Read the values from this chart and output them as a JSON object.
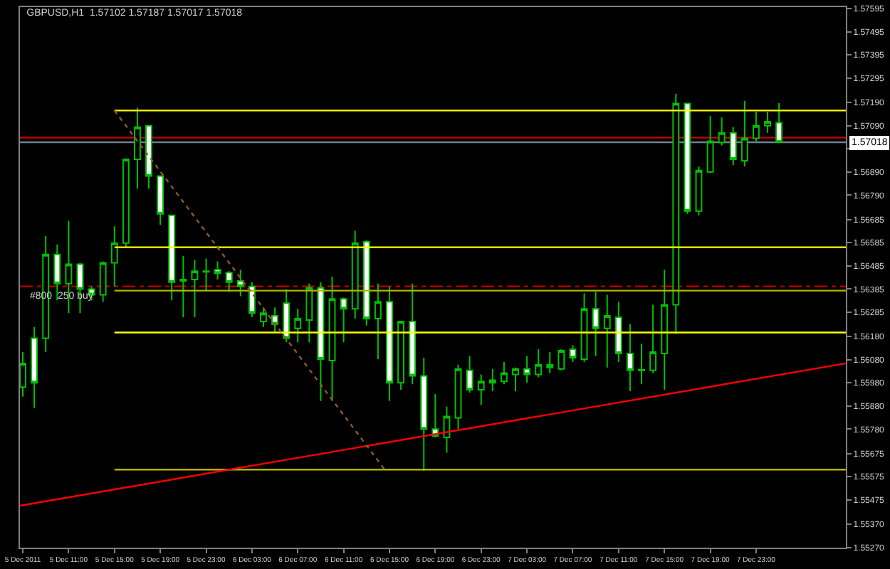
{
  "chart_data": {
    "type": "candlestick",
    "title": "GBPUSD,H1  1.57102 1.57187 1.57017 1.57018",
    "color": "#00c000",
    "x": [
      "2011-12-05T07:00",
      "2011-12-05T08:00",
      "2011-12-05T09:00",
      "2011-12-05T10:00",
      "2011-12-05T11:00",
      "2011-12-05T12:00",
      "2011-12-05T13:00",
      "2011-12-05T14:00",
      "2011-12-05T15:00",
      "2011-12-05T16:00",
      "2011-12-05T17:00",
      "2011-12-05T18:00",
      "2011-12-05T19:00",
      "2011-12-05T20:00",
      "2011-12-05T21:00",
      "2011-12-05T22:00",
      "2011-12-05T23:00",
      "2011-12-06T00:00",
      "2011-12-06T01:00",
      "2011-12-06T02:00",
      "2011-12-06T03:00",
      "2011-12-06T04:00",
      "2011-12-06T05:00",
      "2011-12-06T06:00",
      "2011-12-06T07:00",
      "2011-12-06T08:00",
      "2011-12-06T09:00",
      "2011-12-06T10:00",
      "2011-12-06T11:00",
      "2011-12-06T12:00",
      "2011-12-06T13:00",
      "2011-12-06T14:00",
      "2011-12-06T15:00",
      "2011-12-06T16:00",
      "2011-12-06T17:00",
      "2011-12-06T18:00",
      "2011-12-06T19:00",
      "2011-12-06T20:00",
      "2011-12-06T21:00",
      "2011-12-06T22:00",
      "2011-12-06T23:00",
      "2011-12-07T00:00",
      "2011-12-07T01:00",
      "2011-12-07T02:00",
      "2011-12-07T03:00",
      "2011-12-07T04:00",
      "2011-12-07T05:00",
      "2011-12-07T06:00",
      "2011-12-07T07:00",
      "2011-12-07T08:00",
      "2011-12-07T09:00",
      "2011-12-07T10:00",
      "2011-12-07T11:00",
      "2011-12-07T12:00",
      "2011-12-07T13:00",
      "2011-12-07T14:00",
      "2011-12-07T15:00",
      "2011-12-07T16:00",
      "2011-12-07T17:00",
      "2011-12-07T18:00",
      "2011-12-07T19:00",
      "2011-12-07T20:00",
      "2011-12-07T21:00",
      "2011-12-07T22:00",
      "2011-12-07T23:00",
      "2011-12-08T00:00",
      "2011-12-08T01:00"
    ],
    "ohlc": [
      [
        1.55962,
        1.56113,
        1.5592,
        1.56064
      ],
      [
        1.56173,
        1.56221,
        1.55872,
        1.5598
      ],
      [
        1.56173,
        1.56613,
        1.56113,
        1.56534
      ],
      [
        1.56534,
        1.56577,
        1.56336,
        1.56408
      ],
      [
        1.56408,
        1.56679,
        1.56281,
        1.56492
      ],
      [
        1.56492,
        1.56498,
        1.56281,
        1.56384
      ],
      [
        1.56384,
        1.56396,
        1.56336,
        1.5636
      ],
      [
        1.5636,
        1.56504,
        1.5633,
        1.56498
      ],
      [
        1.56498,
        1.56655,
        1.56396,
        1.56583
      ],
      [
        1.56583,
        1.56944,
        1.56565,
        1.56944
      ],
      [
        1.56944,
        1.57167,
        1.56818,
        1.57083
      ],
      [
        1.57089,
        1.57089,
        1.56818,
        1.56872
      ],
      [
        1.56872,
        1.56872,
        1.56661,
        1.56709
      ],
      [
        1.56703,
        1.56703,
        1.56336,
        1.56414
      ],
      [
        1.5642,
        1.56528,
        1.56263,
        1.56426
      ],
      [
        1.56426,
        1.5651,
        1.56263,
        1.56462
      ],
      [
        1.56459,
        1.56516,
        1.56378,
        1.56462
      ],
      [
        1.56468,
        1.56504,
        1.56426,
        1.56453
      ],
      [
        1.56456,
        1.56462,
        1.56372,
        1.56414
      ],
      [
        1.5642,
        1.56468,
        1.56354,
        1.56396
      ],
      [
        1.56396,
        1.56414,
        1.56263,
        1.56281
      ],
      [
        1.56245,
        1.56305,
        1.56221,
        1.56281
      ],
      [
        1.56269,
        1.56305,
        1.56197,
        1.56233
      ],
      [
        1.56324,
        1.56384,
        1.56155,
        1.56173
      ],
      [
        1.56215,
        1.56299,
        1.56155,
        1.56257
      ],
      [
        1.56251,
        1.56408,
        1.56155,
        1.5639
      ],
      [
        1.5639,
        1.56414,
        1.55902,
        1.56082
      ],
      [
        1.56076,
        1.56438,
        1.55902,
        1.56342
      ],
      [
        1.56342,
        1.56348,
        1.56155,
        1.56299
      ],
      [
        1.56299,
        1.56637,
        1.56257,
        1.56583
      ],
      [
        1.56589,
        1.56595,
        1.56227,
        1.56257
      ],
      [
        1.56257,
        1.56408,
        1.56082,
        1.5633
      ],
      [
        1.5633,
        1.56396,
        1.55902,
        1.5598
      ],
      [
        1.5598,
        1.56245,
        1.5595,
        1.56245
      ],
      [
        1.56245,
        1.56408,
        1.55974,
        1.5601
      ],
      [
        1.5601,
        1.56088,
        1.556,
        1.55781
      ],
      [
        1.55781,
        1.55932,
        1.55745,
        1.55751
      ],
      [
        1.55745,
        1.55878,
        1.55679,
        1.55835
      ],
      [
        1.55829,
        1.56058,
        1.55781,
        1.5604
      ],
      [
        1.56034,
        1.56095,
        1.55938,
        1.5595
      ],
      [
        1.5595,
        1.56016,
        1.55884,
        1.55986
      ],
      [
        1.5598,
        1.5604,
        1.55944,
        1.55992
      ],
      [
        1.55986,
        1.5607,
        1.55974,
        1.56022
      ],
      [
        1.56016,
        1.56046,
        1.55944,
        1.5604
      ],
      [
        1.5604,
        1.56095,
        1.5598,
        1.56016
      ],
      [
        1.56016,
        1.56125,
        1.56004,
        1.56058
      ],
      [
        1.56058,
        1.56113,
        1.56022,
        1.56046
      ],
      [
        1.5604,
        1.56125,
        1.56034,
        1.56119
      ],
      [
        1.56125,
        1.56143,
        1.5607,
        1.56088
      ],
      [
        1.56082,
        1.56366,
        1.5607,
        1.56299
      ],
      [
        1.56299,
        1.56372,
        1.56095,
        1.56215
      ],
      [
        1.56215,
        1.5636,
        1.56046,
        1.56269
      ],
      [
        1.56263,
        1.5633,
        1.5607,
        1.56107
      ],
      [
        1.56107,
        1.56233,
        1.55944,
        1.56034
      ],
      [
        1.56037,
        1.56149,
        1.55974,
        1.56034
      ],
      [
        1.56034,
        1.56317,
        1.56022,
        1.56113
      ],
      [
        1.56107,
        1.56468,
        1.5595,
        1.56317
      ],
      [
        1.56317,
        1.57227,
        1.56191,
        1.57185
      ],
      [
        1.57185,
        1.57185,
        1.56709,
        1.56721
      ],
      [
        1.56721,
        1.56914,
        1.56703,
        1.56896
      ],
      [
        1.5689,
        1.57131,
        1.56884,
        1.57023
      ],
      [
        1.57017,
        1.57125,
        1.57004,
        1.57059
      ],
      [
        1.57059,
        1.57083,
        1.5692,
        1.56944
      ],
      [
        1.56938,
        1.57197,
        1.56914,
        1.57035
      ],
      [
        1.57035,
        1.57149,
        1.57023,
        1.57089
      ],
      [
        1.57089,
        1.57149,
        1.57059,
        1.57107
      ],
      [
        1.57102,
        1.57187,
        1.57017,
        1.57018
      ]
    ],
    "series": [
      {
        "type": "line",
        "color": "#ffff00",
        "x": [
          "2011-12-05T15:00",
          "2011-12-08T06:50"
        ],
        "values": [
          1.57155,
          1.57155
        ]
      },
      {
        "type": "line",
        "color": "#ffff00",
        "x": [
          "2011-12-05T15:00",
          "2011-12-08T06:50"
        ],
        "values": [
          1.56565,
          1.56565
        ]
      },
      {
        "type": "line",
        "color": "#b3b300",
        "x": [
          "2011-12-05T15:00",
          "2011-12-08T06:50"
        ],
        "values": [
          1.56378,
          1.56378
        ]
      },
      {
        "type": "line",
        "color": "#ffff00",
        "x": [
          "2011-12-05T15:00",
          "2011-12-08T06:50"
        ],
        "values": [
          1.56197,
          1.56197
        ]
      },
      {
        "type": "line",
        "color": "#b3b300",
        "x": [
          "2011-12-05T15:00",
          "2011-12-08T06:50"
        ],
        "values": [
          1.55606,
          1.55606
        ]
      },
      {
        "type": "line",
        "color": "#ff0000",
        "x": [
          "2011-12-05T06:45",
          "2011-12-08T06:50"
        ],
        "values": [
          1.5545,
          1.56064
        ]
      },
      {
        "type": "line",
        "color": "#8b5a2b",
        "line_style": "dotted",
        "x": [
          "2011-12-05T15:00",
          "2011-12-06T14:35"
        ],
        "values": [
          1.57155,
          1.55606
        ]
      }
    ],
    "ref_lines": [
      {
        "axis": "y",
        "value": 1.56396,
        "label": "#800  250 buy",
        "color": "#b00000",
        "line_style": "dashed"
      },
      {
        "axis": "y",
        "value": 1.57038,
        "color": "#c00000",
        "line_style": "solid"
      },
      {
        "axis": "y",
        "value": 1.57018,
        "color": "#708090",
        "line_style": "solid"
      }
    ],
    "annotations": [
      {
        "text": "1.57018",
        "y": 1.57018
      }
    ],
    "xlim": [
      "2011-12-05T06:45",
      "2011-12-08T06:50"
    ],
    "xticks": [
      {
        "value": "2011-12-05T07:00",
        "label": "5 Dec 2011"
      },
      {
        "value": "2011-12-05T11:00",
        "label": "5 Dec 11:00"
      },
      {
        "value": "2011-12-05T15:00",
        "label": "5 Dec 15:00"
      },
      {
        "value": "2011-12-05T19:00",
        "label": "5 Dec 19:00"
      },
      {
        "value": "2011-12-05T23:00",
        "label": "5 Dec 23:00"
      },
      {
        "value": "2011-12-06T03:00",
        "label": "6 Dec 03:00"
      },
      {
        "value": "2011-12-06T07:00",
        "label": "6 Dec 07:00"
      },
      {
        "value": "2011-12-06T11:00",
        "label": "6 Dec 11:00"
      },
      {
        "value": "2011-12-06T15:00",
        "label": "6 Dec 15:00"
      },
      {
        "value": "2011-12-06T19:00",
        "label": "6 Dec 19:00"
      },
      {
        "value": "2011-12-06T23:00",
        "label": "6 Dec 23:00"
      },
      {
        "value": "2011-12-07T03:00",
        "label": "7 Dec 03:00"
      },
      {
        "value": "2011-12-07T07:00",
        "label": "7 Dec 07:00"
      },
      {
        "value": "2011-12-07T11:00",
        "label": "7 Dec 11:00"
      },
      {
        "value": "2011-12-07T15:00",
        "label": "7 Dec 15:00"
      },
      {
        "value": "2011-12-07T19:00",
        "label": "7 Dec 19:00"
      },
      {
        "value": "2011-12-07T23:00",
        "label": "7 Dec 23:00"
      }
    ],
    "ylim": [
      1.55269,
      1.57601
    ],
    "yticks": [
      {
        "value": 1.57595,
        "label": "1.57595"
      },
      {
        "value": 1.57495,
        "label": "1.57495"
      },
      {
        "value": 1.57395,
        "label": "1.57395"
      },
      {
        "value": 1.57295,
        "label": "1.57295"
      },
      {
        "value": 1.5719,
        "label": "1.57190"
      },
      {
        "value": 1.5709,
        "label": "1.57090"
      },
      {
        "value": 1.5699,
        "label": null
      },
      {
        "value": 1.5689,
        "label": "1.56890"
      },
      {
        "value": 1.5679,
        "label": "1.56790"
      },
      {
        "value": 1.56685,
        "label": "1.56685"
      },
      {
        "value": 1.56585,
        "label": "1.56585"
      },
      {
        "value": 1.56485,
        "label": "1.56485"
      },
      {
        "value": 1.56385,
        "label": "1.56385"
      },
      {
        "value": 1.56285,
        "label": "1.56285"
      },
      {
        "value": 1.5618,
        "label": "1.56180"
      },
      {
        "value": 1.5608,
        "label": "1.56080"
      },
      {
        "value": 1.5598,
        "label": "1.55980"
      },
      {
        "value": 1.5588,
        "label": "1.55880"
      },
      {
        "value": 1.5578,
        "label": "1.55780"
      },
      {
        "value": 1.55675,
        "label": "1.55675"
      },
      {
        "value": 1.55575,
        "label": "1.55575"
      },
      {
        "value": 1.55475,
        "label": "1.55475"
      },
      {
        "value": 1.5537,
        "label": "1.55370"
      },
      {
        "value": 1.5527,
        "label": "1.55270"
      }
    ],
    "grid": false
  }
}
